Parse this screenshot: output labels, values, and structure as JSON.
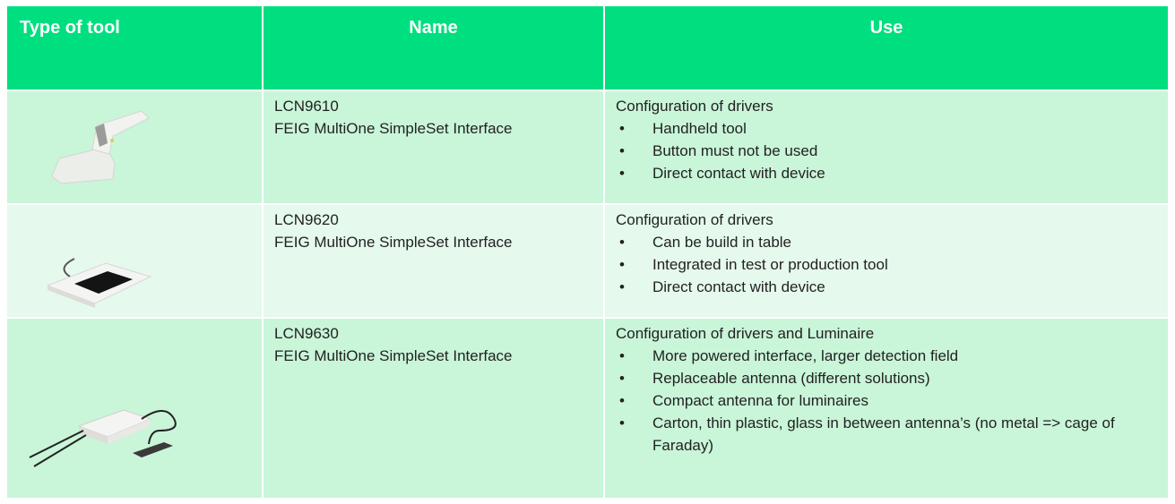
{
  "table": {
    "headers": [
      "Type of tool",
      "Name",
      "Use"
    ],
    "rows": [
      {
        "code": "LCN9610",
        "name": "FEIG MultiOne SimpleSet Interface",
        "use_title": "Configuration of drivers",
        "bullets": [
          "Handheld tool",
          "Button must not be used",
          "Direct contact with device"
        ]
      },
      {
        "code": "LCN9620",
        "name": "FEIG MultiOne SimpleSet Interface",
        "use_title": "Configuration of drivers",
        "bullets": [
          "Can be build in table",
          "Integrated in test or production tool",
          "Direct contact with device"
        ]
      },
      {
        "code": "LCN9630",
        "name": "FEIG MultiOne SimpleSet Interface",
        "use_title": "Configuration of drivers and Luminaire",
        "bullets": [
          "More powered interface, larger detection field",
          "Replaceable antenna (different solutions)",
          "Compact antenna for luminaires",
          "Carton, thin plastic, glass in between antenna’s (no metal => cage of Faraday)"
        ]
      }
    ]
  }
}
